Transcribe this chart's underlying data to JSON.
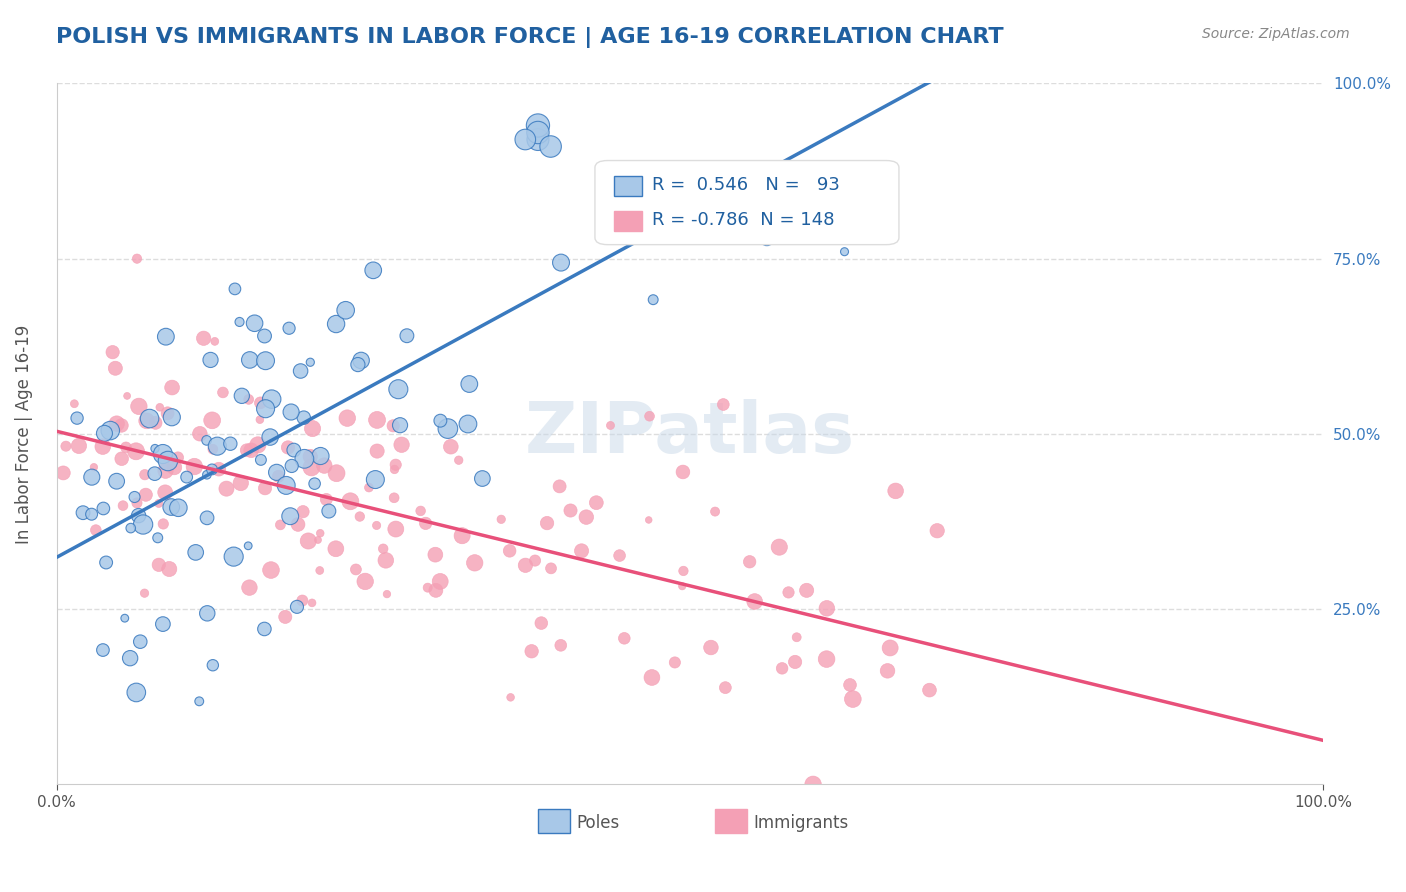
{
  "title": "POLISH VS IMMIGRANTS IN LABOR FORCE | AGE 16-19 CORRELATION CHART",
  "source": "Source: ZipAtlas.com",
  "xlabel": "",
  "ylabel": "In Labor Force | Age 16-19",
  "xlim": [
    0.0,
    1.0
  ],
  "ylim": [
    0.0,
    1.0
  ],
  "xtick_labels": [
    "0.0%",
    "100.0%"
  ],
  "ytick_labels": [
    "25.0%",
    "50.0%",
    "75.0%",
    "100.0%"
  ],
  "poles_R": 0.546,
  "poles_N": 93,
  "immigrants_R": -0.786,
  "immigrants_N": 148,
  "poles_color": "#a8c8e8",
  "immigrants_color": "#f4a0b5",
  "poles_line_color": "#3a7abf",
  "immigrants_line_color": "#e8507a",
  "poles_trend_line_color": "#808080",
  "background_color": "#ffffff",
  "grid_color": "#dddddd",
  "title_color": "#2060a0",
  "legend_text_color": "#2060a0",
  "watermark_color": "#c8d8e8",
  "right_tick_color": "#3a7abf"
}
